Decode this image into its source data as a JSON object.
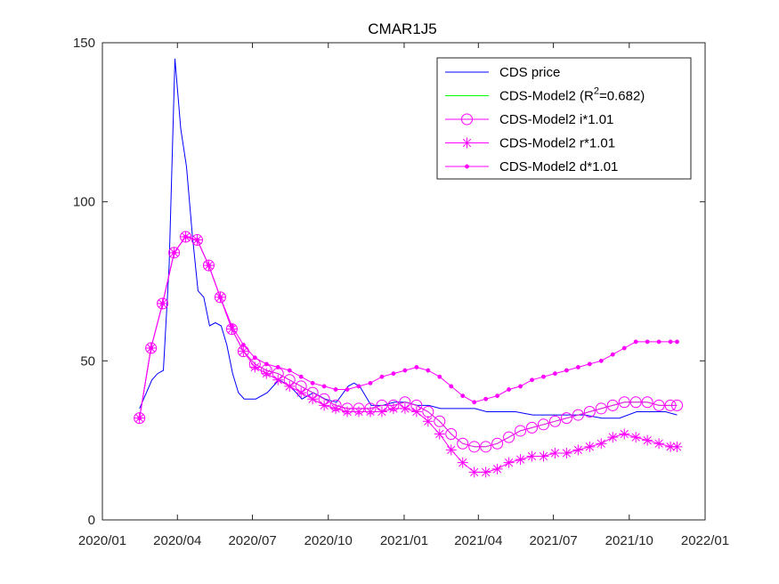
{
  "chart_data": {
    "type": "line",
    "title": "CMAR1J5",
    "xlabel": "",
    "ylabel": "",
    "xlim": [
      "2020-01-01",
      "2022-01-01"
    ],
    "ylim": [
      0,
      150
    ],
    "xticks": [
      "2020/01",
      "2020/04",
      "2020/07",
      "2020/10",
      "2021/01",
      "2021/04",
      "2021/07",
      "2021/10",
      "2022/01"
    ],
    "yticks": [
      0,
      50,
      100,
      150
    ],
    "grid": false,
    "legend_position": "top-right",
    "colors": {
      "cds_price": "#0000ff",
      "model": "#00ff00",
      "variants": "#ff00ff",
      "axes": "#262626"
    },
    "series": [
      {
        "name": "CDS price",
        "marker": "none",
        "x": [
          "2020-02-15",
          "2020-03-01",
          "2020-03-08",
          "2020-03-15",
          "2020-03-22",
          "2020-03-29",
          "2020-04-05",
          "2020-04-12",
          "2020-04-19",
          "2020-04-26",
          "2020-05-03",
          "2020-05-10",
          "2020-05-17",
          "2020-05-24",
          "2020-05-31",
          "2020-06-07",
          "2020-06-14",
          "2020-06-21",
          "2020-06-28",
          "2020-07-05",
          "2020-07-19",
          "2020-08-02",
          "2020-08-16",
          "2020-08-30",
          "2020-09-13",
          "2020-09-27",
          "2020-10-11",
          "2020-10-25",
          "2020-11-01",
          "2020-11-08",
          "2020-11-22",
          "2020-12-06",
          "2020-12-20",
          "2021-01-03",
          "2021-01-17",
          "2021-01-31",
          "2021-02-14",
          "2021-02-28",
          "2021-03-14",
          "2021-03-28",
          "2021-04-11",
          "2021-04-25",
          "2021-05-16",
          "2021-06-06",
          "2021-06-27",
          "2021-07-18",
          "2021-08-08",
          "2021-08-29",
          "2021-09-19",
          "2021-10-10",
          "2021-10-31",
          "2021-11-14",
          "2021-11-28"
        ],
        "y": [
          35,
          44,
          46,
          47,
          80,
          145,
          123,
          111,
          90,
          72,
          70,
          61,
          62,
          61,
          55,
          46,
          40,
          38,
          38,
          38,
          40,
          44,
          42,
          38,
          40,
          38,
          37,
          42,
          43,
          42,
          36,
          36,
          37,
          37,
          36,
          36,
          35,
          35,
          35,
          35,
          34,
          34,
          34,
          33,
          33,
          33,
          33,
          32,
          32,
          34,
          34,
          34,
          33
        ]
      },
      {
        "name": "CDS-Model2 (R²=0.682)",
        "marker": "none",
        "x": [
          "2020-02-15",
          "2020-02-29",
          "2020-03-14",
          "2020-03-28",
          "2020-04-11",
          "2020-04-25",
          "2020-05-09",
          "2020-05-23",
          "2020-06-06",
          "2020-06-20",
          "2020-07-04",
          "2020-07-18",
          "2020-08-01",
          "2020-08-15",
          "2020-08-29",
          "2020-09-12",
          "2020-09-26",
          "2020-10-10",
          "2020-10-24",
          "2020-11-07",
          "2020-11-21",
          "2020-12-05",
          "2020-12-19",
          "2021-01-02",
          "2021-01-16",
          "2021-01-30",
          "2021-02-13",
          "2021-02-27",
          "2021-03-13",
          "2021-03-27",
          "2021-04-10",
          "2021-04-24",
          "2021-05-08",
          "2021-05-22",
          "2021-06-05",
          "2021-06-19",
          "2021-07-03",
          "2021-07-17",
          "2021-07-31",
          "2021-08-14",
          "2021-08-28",
          "2021-09-11",
          "2021-09-25",
          "2021-10-09",
          "2021-10-23",
          "2021-11-06",
          "2021-11-20",
          "2021-11-28"
        ],
        "y": [
          32,
          54,
          68,
          84,
          89,
          88,
          80,
          70,
          60,
          53,
          49,
          47,
          46,
          44,
          42,
          40,
          38,
          36,
          35,
          35,
          35,
          36,
          36,
          37,
          36,
          34,
          31,
          27,
          24,
          23,
          23,
          24,
          26,
          28,
          29,
          30,
          31,
          32,
          33,
          34,
          35,
          36,
          37,
          37,
          37,
          36,
          36,
          36
        ]
      },
      {
        "name": "CDS-Model2 i*1.01",
        "marker": "circle",
        "x": [
          "2020-02-15",
          "2020-02-29",
          "2020-03-14",
          "2020-03-28",
          "2020-04-11",
          "2020-04-25",
          "2020-05-09",
          "2020-05-23",
          "2020-06-06",
          "2020-06-20",
          "2020-07-04",
          "2020-07-18",
          "2020-08-01",
          "2020-08-15",
          "2020-08-29",
          "2020-09-12",
          "2020-09-26",
          "2020-10-10",
          "2020-10-24",
          "2020-11-07",
          "2020-11-21",
          "2020-12-05",
          "2020-12-19",
          "2021-01-02",
          "2021-01-16",
          "2021-01-30",
          "2021-02-13",
          "2021-02-27",
          "2021-03-13",
          "2021-03-27",
          "2021-04-10",
          "2021-04-24",
          "2021-05-08",
          "2021-05-22",
          "2021-06-05",
          "2021-06-19",
          "2021-07-03",
          "2021-07-17",
          "2021-07-31",
          "2021-08-14",
          "2021-08-28",
          "2021-09-11",
          "2021-09-25",
          "2021-10-09",
          "2021-10-23",
          "2021-11-06",
          "2021-11-20",
          "2021-11-28"
        ],
        "y": [
          32,
          54,
          68,
          84,
          89,
          88,
          80,
          70,
          60,
          53,
          49,
          47,
          46,
          44,
          42,
          40,
          38,
          36,
          35,
          35,
          35,
          36,
          36,
          37,
          36,
          34,
          31,
          27,
          24,
          23,
          23,
          24,
          26,
          28,
          29,
          30,
          31,
          32,
          33,
          34,
          35,
          36,
          37,
          37,
          37,
          36,
          36,
          36
        ]
      },
      {
        "name": "CDS-Model2 r*1.01",
        "marker": "asterisk",
        "x": [
          "2020-02-15",
          "2020-02-29",
          "2020-03-14",
          "2020-03-28",
          "2020-04-11",
          "2020-04-25",
          "2020-05-09",
          "2020-05-23",
          "2020-06-06",
          "2020-06-20",
          "2020-07-04",
          "2020-07-18",
          "2020-08-01",
          "2020-08-15",
          "2020-08-29",
          "2020-09-12",
          "2020-09-26",
          "2020-10-10",
          "2020-10-24",
          "2020-11-07",
          "2020-11-21",
          "2020-12-05",
          "2020-12-19",
          "2021-01-02",
          "2021-01-16",
          "2021-01-30",
          "2021-02-13",
          "2021-02-27",
          "2021-03-13",
          "2021-03-27",
          "2021-04-10",
          "2021-04-24",
          "2021-05-08",
          "2021-05-22",
          "2021-06-05",
          "2021-06-19",
          "2021-07-03",
          "2021-07-17",
          "2021-07-31",
          "2021-08-14",
          "2021-08-28",
          "2021-09-11",
          "2021-09-25",
          "2021-10-09",
          "2021-10-23",
          "2021-11-06",
          "2021-11-20",
          "2021-11-28"
        ],
        "y": [
          32,
          54,
          68,
          84,
          89,
          88,
          80,
          70,
          60,
          53,
          48,
          46,
          44,
          42,
          40,
          38,
          36,
          35,
          34,
          34,
          34,
          34,
          35,
          35,
          34,
          31,
          27,
          22,
          18,
          15,
          15,
          16,
          18,
          19,
          20,
          20,
          21,
          21,
          22,
          23,
          24,
          26,
          27,
          26,
          25,
          24,
          23,
          23
        ]
      },
      {
        "name": "CDS-Model2 d*1.01",
        "marker": "point",
        "x": [
          "2020-02-15",
          "2020-02-29",
          "2020-03-14",
          "2020-03-28",
          "2020-04-11",
          "2020-04-25",
          "2020-05-09",
          "2020-05-23",
          "2020-06-06",
          "2020-06-20",
          "2020-07-04",
          "2020-07-18",
          "2020-08-01",
          "2020-08-15",
          "2020-08-29",
          "2020-09-12",
          "2020-09-26",
          "2020-10-10",
          "2020-10-24",
          "2020-11-07",
          "2020-11-21",
          "2020-12-05",
          "2020-12-19",
          "2021-01-02",
          "2021-01-16",
          "2021-01-30",
          "2021-02-13",
          "2021-02-27",
          "2021-03-13",
          "2021-03-27",
          "2021-04-10",
          "2021-04-24",
          "2021-05-08",
          "2021-05-22",
          "2021-06-05",
          "2021-06-19",
          "2021-07-03",
          "2021-07-17",
          "2021-07-31",
          "2021-08-14",
          "2021-08-28",
          "2021-09-11",
          "2021-09-25",
          "2021-10-09",
          "2021-10-23",
          "2021-11-06",
          "2021-11-20",
          "2021-11-28"
        ],
        "y": [
          32,
          54,
          68,
          84,
          89,
          88,
          80,
          70,
          61,
          55,
          51,
          49,
          48,
          47,
          45,
          43,
          42,
          41,
          41,
          42,
          43,
          45,
          46,
          47,
          48,
          47,
          45,
          42,
          39,
          37,
          38,
          39,
          41,
          42,
          44,
          45,
          46,
          47,
          48,
          49,
          50,
          52,
          54,
          56,
          56,
          56,
          56,
          56
        ]
      }
    ],
    "legend": [
      {
        "prefix": "CDS price",
        "sup": "",
        "suffix": ""
      },
      {
        "prefix": "CDS-Model2 (R",
        "sup": "2",
        "suffix": "=0.682)"
      },
      {
        "prefix": "CDS-Model2 i*1.01",
        "sup": "",
        "suffix": ""
      },
      {
        "prefix": "CDS-Model2 r*1.01",
        "sup": "",
        "suffix": ""
      },
      {
        "prefix": "CDS-Model2 d*1.01",
        "sup": "",
        "suffix": ""
      }
    ]
  }
}
